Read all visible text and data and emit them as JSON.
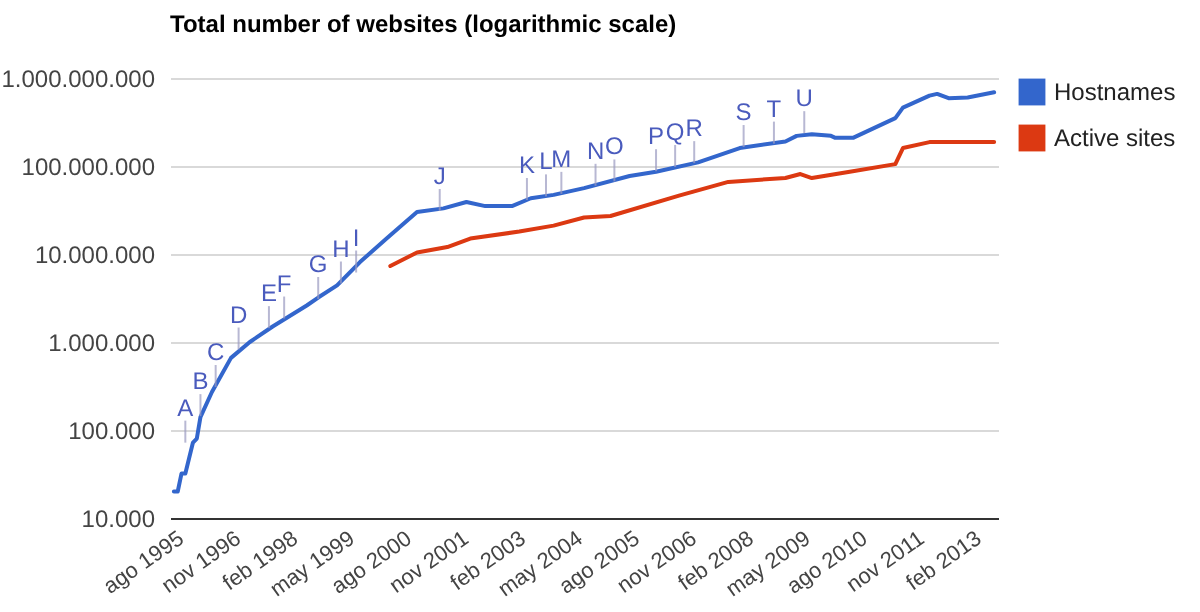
{
  "chart_data": {
    "type": "line",
    "title": "Total number of websites (logarithmic scale)",
    "log": "y",
    "grid": "y",
    "legend": "right",
    "marker": "none",
    "line_style": "solid",
    "xlim": [
      "1995-07",
      "2013-09"
    ],
    "xticks": [
      {
        "value": "1995-08",
        "label": "ago 1995"
      },
      {
        "value": "1996-11",
        "label": "nov 1996"
      },
      {
        "value": "1998-02",
        "label": "feb 1998"
      },
      {
        "value": "1999-05",
        "label": "may 1999"
      },
      {
        "value": "2000-08",
        "label": "ago 2000"
      },
      {
        "value": "2001-11",
        "label": "nov 2001"
      },
      {
        "value": "2003-02",
        "label": "feb 2003"
      },
      {
        "value": "2004-05",
        "label": "may 2004"
      },
      {
        "value": "2005-08",
        "label": "ago 2005"
      },
      {
        "value": "2006-11",
        "label": "nov 2006"
      },
      {
        "value": "2008-02",
        "label": "feb 2008"
      },
      {
        "value": "2009-05",
        "label": "may 2009"
      },
      {
        "value": "2010-08",
        "label": "ago 2010"
      },
      {
        "value": "2011-11",
        "label": "nov 2011"
      },
      {
        "value": "2013-02",
        "label": "feb 2013"
      }
    ],
    "ylim": [
      10000,
      1000000000
    ],
    "yticks": [
      {
        "value": 10000,
        "label": "10.000"
      },
      {
        "value": 100000,
        "label": "100.000"
      },
      {
        "value": 1000000,
        "label": "1.000.000"
      },
      {
        "value": 10000000,
        "label": "10.000.000"
      },
      {
        "value": 100000000,
        "label": "100.000.000"
      },
      {
        "value": 1000000000,
        "label": "1.000.000.000"
      }
    ],
    "series": [
      {
        "name": "Hostnames",
        "color": "#3366cc",
        "x": [
          "1995-08",
          "1995-09",
          "1995-10",
          "1995-11",
          "1996-01",
          "1996-02",
          "1996-03",
          "1996-06",
          "1996-11",
          "1997-04",
          "1997-10",
          "1998-07",
          "1998-10",
          "1999-03",
          "1999-09",
          "2000-04",
          "2000-12",
          "2001-07",
          "2002-01",
          "2002-06",
          "2003-01",
          "2003-06",
          "2003-12",
          "2004-08",
          "2005-08",
          "2006-03",
          "2007-02",
          "2008-01",
          "2009-01",
          "2009-04",
          "2009-08",
          "2010-01",
          "2010-02",
          "2010-07",
          "2011-06",
          "2011-08",
          "2012-03",
          "2012-05",
          "2012-08",
          "2013-01",
          "2013-08"
        ],
        "values": [
          20000,
          20000,
          32000,
          32000,
          72000,
          80000,
          140000,
          270000,
          660000,
          1000000,
          1500000,
          2600000,
          3200000,
          4400000,
          8100000,
          15000000,
          30000000,
          33000000,
          39000000,
          35000000,
          35000000,
          43000000,
          47000000,
          56000000,
          77000000,
          86000000,
          110000000,
          160000000,
          190000000,
          220000000,
          230000000,
          220000000,
          210000000,
          210000000,
          350000000,
          460000000,
          630000000,
          660000000,
          590000000,
          600000000,
          690000000
        ]
      },
      {
        "name": "Active sites",
        "color": "#dc3912",
        "x": [
          "2000-05",
          "2000-12",
          "2001-08",
          "2002-02",
          "2003-03",
          "2003-12",
          "2004-08",
          "2005-03",
          "2006-09",
          "2007-10",
          "2009-01",
          "2009-05",
          "2009-08",
          "2010-06",
          "2011-06",
          "2011-08",
          "2012-03",
          "2013-08"
        ],
        "values": [
          7300000,
          10400000,
          12000000,
          15000000,
          18000000,
          21000000,
          26000000,
          27000000,
          46000000,
          66000000,
          73000000,
          81000000,
          73000000,
          86000000,
          105000000,
          160000000,
          187000000,
          187000000
        ]
      }
    ],
    "annotations": [
      {
        "text": "A",
        "x": "1995-11",
        "y": 70000
      },
      {
        "text": "B",
        "x": "1996-03",
        "y": 140000
      },
      {
        "text": "C",
        "x": "1996-07",
        "y": 300000
      },
      {
        "text": "D",
        "x": "1997-01",
        "y": 800000
      },
      {
        "text": "E",
        "x": "1997-09",
        "y": 1400000
      },
      {
        "text": "F",
        "x": "1998-01",
        "y": 1800000
      },
      {
        "text": "G",
        "x": "1998-10",
        "y": 3000000
      },
      {
        "text": "H",
        "x": "1999-04",
        "y": 4500000
      },
      {
        "text": "I",
        "x": "1999-08",
        "y": 6000000
      },
      {
        "text": "J",
        "x": "2001-06",
        "y": 30000000
      },
      {
        "text": "K",
        "x": "2003-05",
        "y": 40000000
      },
      {
        "text": "L",
        "x": "2003-10",
        "y": 44000000
      },
      {
        "text": "M",
        "x": "2004-02",
        "y": 47000000
      },
      {
        "text": "N",
        "x": "2004-11",
        "y": 58000000
      },
      {
        "text": "O",
        "x": "2005-04",
        "y": 65000000
      },
      {
        "text": "P",
        "x": "2006-03",
        "y": 85000000
      },
      {
        "text": "Q",
        "x": "2006-08",
        "y": 95000000
      },
      {
        "text": "R",
        "x": "2007-01",
        "y": 105000000
      },
      {
        "text": "S",
        "x": "2008-02",
        "y": 160000000
      },
      {
        "text": "T",
        "x": "2008-10",
        "y": 175000000
      },
      {
        "text": "U",
        "x": "2009-06",
        "y": 230000000
      }
    ]
  }
}
